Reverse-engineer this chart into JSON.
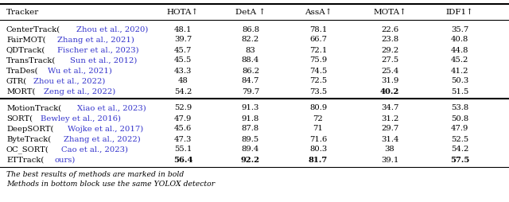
{
  "columns": [
    "Tracker",
    "HOTA↑",
    "DetA ↑",
    "AssA↑",
    "MOTA↑",
    "IDF1↑"
  ],
  "block1": [
    [
      "CenterTrack",
      "Zhou et al., 2020",
      "48.1",
      "86.8",
      "78.1",
      "22.6",
      "35.7",
      false,
      false,
      false,
      false,
      false,
      false
    ],
    [
      "FairMOT",
      "Zhang et al., 2021",
      "39.7",
      "82.2",
      "66.7",
      "23.8",
      "40.8",
      false,
      false,
      false,
      false,
      false,
      false
    ],
    [
      "QDTrack",
      "Fischer et al., 2023",
      "45.7",
      "83",
      "72.1",
      "29.2",
      "44.8",
      false,
      false,
      false,
      false,
      false,
      false
    ],
    [
      "TransTrack",
      "Sun et al., 2012",
      "45.5",
      "88.4",
      "75.9",
      "27.5",
      "45.2",
      false,
      false,
      false,
      false,
      false,
      false
    ],
    [
      "TraDes",
      "Wu et al., 2021",
      "43.3",
      "86.2",
      "74.5",
      "25.4",
      "41.2",
      false,
      false,
      false,
      false,
      false,
      false
    ],
    [
      "GTR",
      "Zhou et al., 2022",
      "48",
      "84.7",
      "72.5",
      "31.9",
      "50.3",
      false,
      false,
      false,
      false,
      false,
      false
    ],
    [
      "MORT",
      "Zeng et al., 2022",
      "54.2",
      "79.7",
      "73.5",
      "40.2",
      "51.5",
      false,
      false,
      false,
      false,
      true,
      false
    ]
  ],
  "block2": [
    [
      "MotionTrack",
      "Xiao et al., 2023",
      "52.9",
      "91.3",
      "80.9",
      "34.7",
      "53.8",
      false,
      false,
      false,
      false,
      false,
      false
    ],
    [
      "SORT",
      "Bewley et al., 2016",
      "47.9",
      "91.8",
      "72",
      "31.2",
      "50.8",
      false,
      false,
      false,
      false,
      false,
      false
    ],
    [
      "DeepSORT",
      "Wojke et al., 2017",
      "45.6",
      "87.8",
      "71",
      "29.7",
      "47.9",
      false,
      false,
      false,
      false,
      false,
      false
    ],
    [
      "ByteTrack",
      "Zhang et al., 2022",
      "47.3",
      "89.5",
      "71.6",
      "31.4",
      "52.5",
      false,
      false,
      false,
      false,
      false,
      false
    ],
    [
      "OC_SORT",
      "Cao et al., 2023",
      "55.1",
      "89.4",
      "80.3",
      "38",
      "54.2",
      false,
      false,
      false,
      false,
      false,
      false
    ],
    [
      "ETTrack",
      "ours",
      "56.4",
      "92.2",
      "81.7",
      "39.1",
      "57.5",
      false,
      true,
      true,
      true,
      false,
      true
    ]
  ],
  "footer": [
    "The best results of methods are marked in bold",
    "Methods in bottom block use the same YOLOX detector"
  ],
  "link_color": "#3333cc",
  "bg_color": "#ffffff",
  "font_size": 7.2,
  "header_font_size": 7.5
}
